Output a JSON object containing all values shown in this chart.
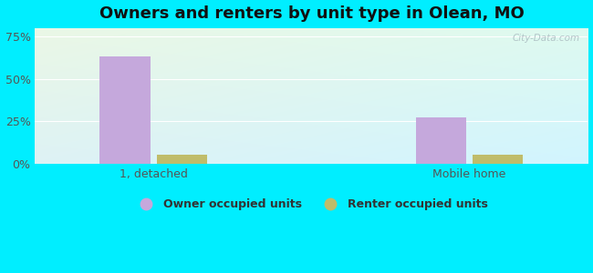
{
  "title": "Owners and renters by unit type in Olean, MO",
  "categories": [
    "1, detached",
    "Mobile home"
  ],
  "owner_values": [
    63,
    27
  ],
  "renter_values": [
    5,
    5
  ],
  "owner_color": "#c5a8dc",
  "renter_color": "#c0bc6a",
  "yticks": [
    0,
    25,
    50,
    75
  ],
  "ytick_labels": [
    "0%",
    "25%",
    "50%",
    "75%"
  ],
  "ylim": [
    0,
    80
  ],
  "bar_width": 0.32,
  "legend_owner": "Owner occupied units",
  "legend_renter": "Renter occupied units",
  "title_fontsize": 13,
  "background_outer": "#00eeff",
  "watermark": "City-Data.com",
  "x_positions": [
    0.75,
    2.75
  ],
  "xlim": [
    0,
    3.5
  ]
}
